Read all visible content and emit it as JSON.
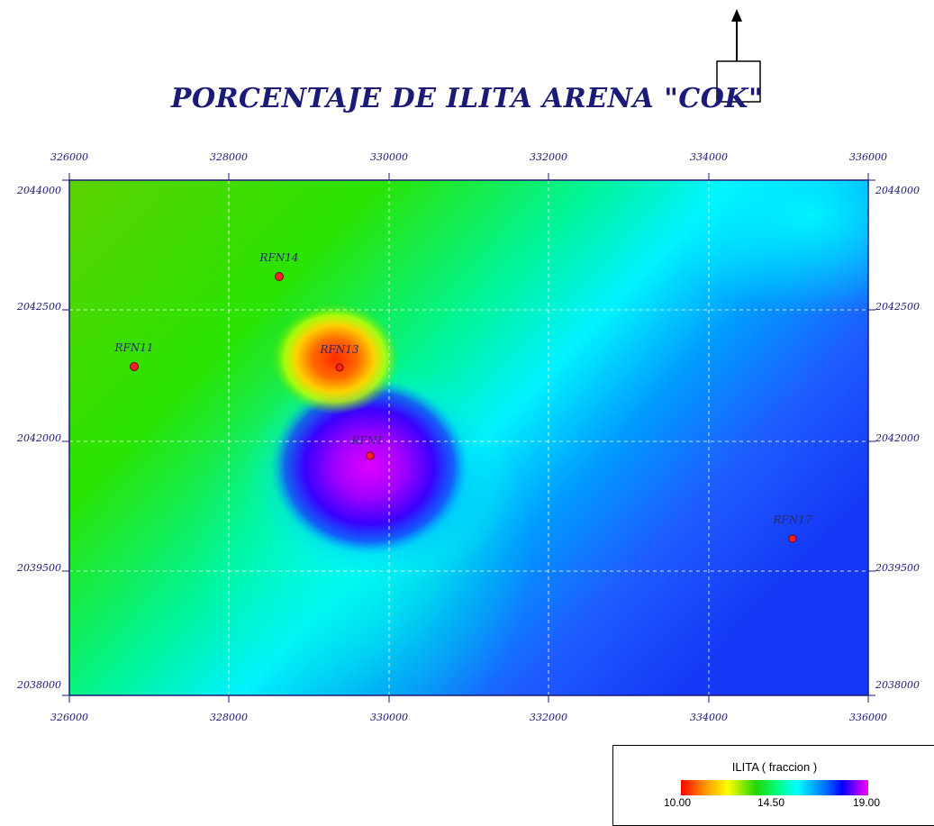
{
  "title": "PORCENTAJE DE ILITA ARENA \"COK\"",
  "map": {
    "x_ticks": [
      "326000",
      "328000",
      "330000",
      "332000",
      "334000",
      "336000"
    ],
    "y_ticks": [
      "2044000",
      "2042500",
      "2042000",
      "2039500",
      "2038000"
    ],
    "wells": [
      {
        "name": "RFN14",
        "color": "#ff2020"
      },
      {
        "name": "RFN11",
        "color": "#ff2020"
      },
      {
        "name": "RFN13",
        "color": "#ff2020"
      },
      {
        "name": "RFN1",
        "color": "#ff2020"
      },
      {
        "name": "RFN17",
        "color": "#ff2020"
      }
    ],
    "colors": {
      "border": "#1a1a78",
      "grid": "#ffffff"
    }
  },
  "legend": {
    "title": "ILITA ( fraccion )",
    "min_label": "10.00",
    "mid_label": "14.50",
    "max_label": "19.00"
  }
}
